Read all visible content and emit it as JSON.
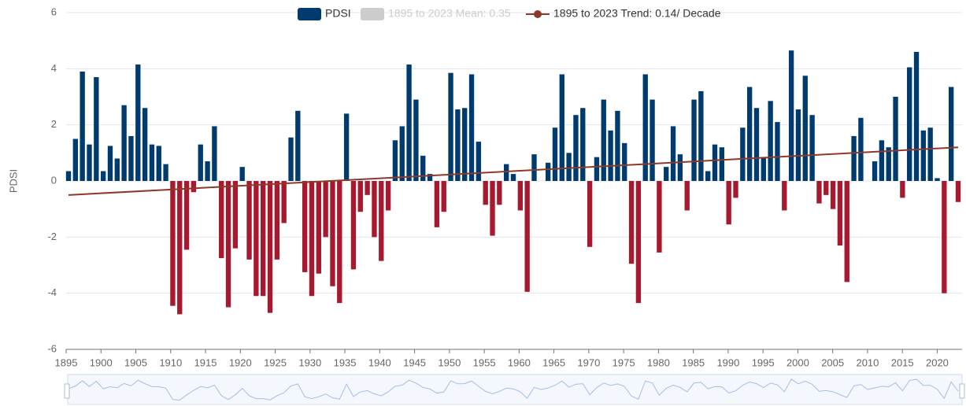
{
  "chart_data": {
    "type": "bar",
    "y_label": "PDSI",
    "x": [
      1895,
      1896,
      1897,
      1898,
      1899,
      1900,
      1901,
      1902,
      1903,
      1904,
      1905,
      1906,
      1907,
      1908,
      1909,
      1910,
      1911,
      1912,
      1913,
      1914,
      1915,
      1916,
      1917,
      1918,
      1919,
      1920,
      1921,
      1922,
      1923,
      1924,
      1925,
      1926,
      1927,
      1928,
      1929,
      1930,
      1931,
      1932,
      1933,
      1934,
      1935,
      1936,
      1937,
      1938,
      1939,
      1940,
      1941,
      1942,
      1943,
      1944,
      1945,
      1946,
      1947,
      1948,
      1949,
      1950,
      1951,
      1952,
      1953,
      1954,
      1955,
      1956,
      1957,
      1958,
      1959,
      1960,
      1961,
      1962,
      1963,
      1964,
      1965,
      1966,
      1967,
      1968,
      1969,
      1970,
      1971,
      1972,
      1973,
      1974,
      1975,
      1976,
      1977,
      1978,
      1979,
      1980,
      1981,
      1982,
      1983,
      1984,
      1985,
      1986,
      1987,
      1988,
      1989,
      1990,
      1991,
      1992,
      1993,
      1994,
      1995,
      1996,
      1997,
      1998,
      1999,
      2000,
      2001,
      2002,
      2003,
      2004,
      2005,
      2006,
      2007,
      2008,
      2009,
      2010,
      2011,
      2012,
      2013,
      2014,
      2015,
      2016,
      2017,
      2018,
      2019,
      2020,
      2021,
      2022,
      2023
    ],
    "series": [
      {
        "name": "PDSI",
        "color": "#003b6f",
        "negative_color": "#a6192e",
        "values": [
          0.35,
          1.5,
          3.9,
          1.3,
          3.7,
          0.35,
          1.25,
          0.8,
          2.7,
          1.6,
          4.15,
          2.6,
          1.3,
          1.25,
          0.6,
          -4.45,
          -4.75,
          -2.45,
          -0.4,
          1.3,
          0.7,
          1.95,
          -2.75,
          -4.5,
          -2.4,
          0.5,
          -2.8,
          -4.1,
          -4.1,
          -4.7,
          -2.8,
          -1.5,
          1.55,
          2.5,
          -3.25,
          -4.1,
          -3.3,
          -2.0,
          -3.75,
          -4.35,
          2.4,
          -3.15,
          -1.1,
          -0.5,
          -2.0,
          -2.85,
          -1.05,
          1.45,
          1.95,
          4.15,
          2.9,
          0.9,
          0.25,
          -1.65,
          -1.1,
          3.85,
          2.55,
          2.6,
          3.8,
          1.4,
          -0.85,
          -1.95,
          -0.85,
          0.6,
          0.25,
          -1.05,
          -3.95,
          0.95,
          0.0,
          0.65,
          1.9,
          3.8,
          1.0,
          2.35,
          2.6,
          -2.35,
          0.85,
          2.9,
          1.8,
          2.5,
          1.35,
          -2.95,
          -4.35,
          3.8,
          2.9,
          -2.55,
          0.5,
          1.95,
          0.95,
          -1.05,
          2.9,
          3.2,
          0.35,
          1.3,
          1.2,
          -1.55,
          -0.6,
          1.9,
          3.35,
          2.6,
          0.85,
          2.85,
          2.1,
          -1.05,
          4.65,
          2.55,
          3.75,
          2.35,
          -0.8,
          -0.5,
          -1.0,
          -2.3,
          -3.6,
          1.6,
          2.25,
          0.0,
          0.7,
          1.45,
          1.2,
          3.0,
          -0.6,
          4.05,
          4.6,
          1.8,
          1.9,
          0.1,
          -4.0,
          3.35,
          -0.75
        ]
      },
      {
        "name": "1895 to 2023 Mean: 0.35",
        "color": "#cccccc",
        "visible": false
      },
      {
        "name": "1895 to 2023 Trend: 0.14/ Decade",
        "color": "#8b3a2a",
        "type": "line",
        "x": [
          1895,
          2023
        ],
        "values": [
          -0.5,
          1.2
        ]
      }
    ],
    "xlim": [
      1895,
      2023
    ],
    "xticks": [
      1895,
      1900,
      1905,
      1910,
      1915,
      1920,
      1925,
      1930,
      1935,
      1940,
      1945,
      1950,
      1955,
      1960,
      1965,
      1970,
      1975,
      1980,
      1985,
      1990,
      1995,
      2000,
      2005,
      2010,
      2015,
      2020
    ],
    "ylim": [
      -6,
      6
    ],
    "yticks": [
      -6,
      -4,
      -2,
      0,
      2,
      4,
      6
    ],
    "grid": true
  }
}
